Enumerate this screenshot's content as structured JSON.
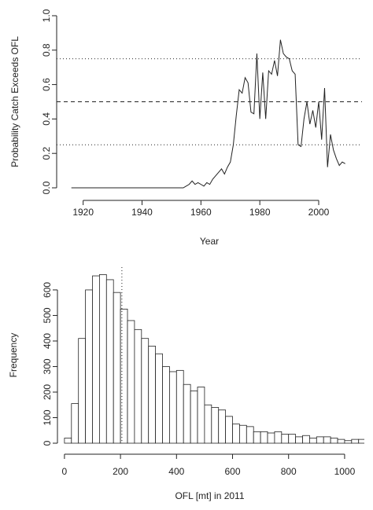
{
  "chart_data": [
    {
      "type": "line",
      "x_label": "Year",
      "y_label": "Probability Catch Exceeds OFL",
      "x": [
        1916,
        1917,
        1918,
        1919,
        1920,
        1921,
        1922,
        1923,
        1924,
        1925,
        1926,
        1927,
        1928,
        1929,
        1930,
        1931,
        1932,
        1933,
        1934,
        1935,
        1936,
        1937,
        1938,
        1939,
        1940,
        1941,
        1942,
        1943,
        1944,
        1945,
        1946,
        1947,
        1948,
        1949,
        1950,
        1951,
        1952,
        1953,
        1954,
        1955,
        1956,
        1957,
        1958,
        1959,
        1960,
        1961,
        1962,
        1963,
        1964,
        1965,
        1966,
        1967,
        1968,
        1969,
        1970,
        1971,
        1972,
        1973,
        1974,
        1975,
        1976,
        1977,
        1978,
        1979,
        1980,
        1981,
        1982,
        1983,
        1984,
        1985,
        1986,
        1987,
        1988,
        1989,
        1990,
        1991,
        1992,
        1993,
        1994,
        1995,
        1996,
        1997,
        1998,
        1999,
        2000,
        2001,
        2002,
        2003,
        2004,
        2005,
        2006,
        2007,
        2008,
        2009
      ],
      "series": [
        {
          "color": "#222222",
          "values": [
            0,
            0,
            0,
            0,
            0,
            0,
            0,
            0,
            0,
            0,
            0,
            0,
            0,
            0,
            0,
            0,
            0,
            0,
            0,
            0,
            0,
            0,
            0,
            0,
            0,
            0,
            0,
            0,
            0,
            0,
            0,
            0,
            0,
            0,
            0,
            0,
            0,
            0,
            0,
            0.01,
            0.02,
            0.04,
            0.02,
            0.03,
            0.02,
            0.01,
            0.03,
            0.02,
            0.05,
            0.07,
            0.09,
            0.11,
            0.08,
            0.12,
            0.15,
            0.25,
            0.42,
            0.57,
            0.55,
            0.64,
            0.61,
            0.44,
            0.43,
            0.78,
            0.4,
            0.67,
            0.4,
            0.68,
            0.66,
            0.74,
            0.65,
            0.86,
            0.78,
            0.76,
            0.75,
            0.68,
            0.66,
            0.25,
            0.24,
            0.4,
            0.5,
            0.37,
            0.45,
            0.35,
            0.5,
            0.28,
            0.58,
            0.12,
            0.31,
            0.22,
            0.17,
            0.13,
            0.15,
            0.14
          ]
        }
      ],
      "xlim": [
        1911,
        2014.7
      ],
      "ylim": [
        0,
        1
      ],
      "xticks": [
        1920,
        1940,
        1960,
        1980,
        2000
      ],
      "yticks": [
        {
          "value": 0,
          "label": "0.0"
        },
        0.2,
        0.4,
        0.6,
        0.8,
        {
          "value": 1,
          "label": "1.0"
        }
      ],
      "hlines": [
        {
          "value": 0.25,
          "style": "dotted"
        },
        {
          "value": 0.5,
          "style": "dashed"
        },
        {
          "value": 0.75,
          "style": "dotted"
        }
      ]
    },
    {
      "type": "histogram",
      "x_label": "OFL [mt] in 2011",
      "y_label": "Frequency",
      "bins": [
        0,
        25,
        50,
        75,
        100,
        125,
        150,
        175,
        200,
        225,
        250,
        275,
        300,
        325,
        350,
        375,
        400,
        425,
        450,
        475,
        500,
        525,
        550,
        575,
        600,
        625,
        650,
        675,
        700,
        725,
        750,
        775,
        800,
        825,
        850,
        875,
        900,
        925,
        950,
        975,
        1000,
        1025,
        1050,
        1075
      ],
      "counts": [
        20,
        155,
        410,
        600,
        655,
        660,
        640,
        590,
        525,
        480,
        445,
        410,
        380,
        350,
        300,
        280,
        285,
        230,
        205,
        220,
        150,
        140,
        130,
        105,
        75,
        70,
        65,
        45,
        45,
        40,
        45,
        35,
        35,
        25,
        30,
        20,
        25,
        25,
        20,
        15,
        10,
        15,
        15
      ],
      "color": "#ffffff",
      "xlim": [
        -25,
        1062
      ],
      "ylim": [
        0,
        689
      ],
      "xticks": [
        0,
        200,
        400,
        600,
        800,
        1000
      ],
      "yticks": [
        0,
        100,
        200,
        300,
        400,
        500,
        600
      ],
      "vlines": [
        {
          "value": 205,
          "style": "dotted"
        }
      ]
    }
  ]
}
